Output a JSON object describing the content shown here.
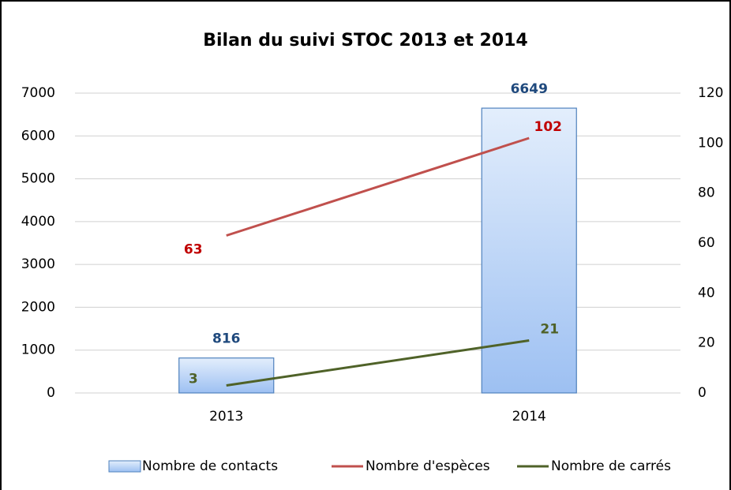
{
  "chart_data": {
    "type": "bar",
    "title": "Bilan du suivi STOC 2013 et 2014",
    "categories": [
      "2013",
      "2014"
    ],
    "series": [
      {
        "name": "Nombre de contacts",
        "type": "bar",
        "color": "#4f81bd",
        "values": [
          816,
          6649
        ]
      },
      {
        "name": "Nombre d'espèces",
        "type": "line",
        "axis": "y2",
        "color": "#c0504d",
        "values": [
          63,
          102
        ]
      },
      {
        "name": "Nombre de carrés",
        "type": "line",
        "axis": "y2",
        "color": "#4f6228",
        "values": [
          3,
          21
        ]
      }
    ],
    "ylim": [
      0,
      7000
    ],
    "yticks": [
      0,
      1000,
      2000,
      3000,
      4000,
      5000,
      6000,
      7000
    ],
    "y2lim": [
      0,
      120
    ],
    "y2ticks": [
      0,
      20,
      40,
      60,
      80,
      100,
      120
    ],
    "grid": true,
    "legend": "bottom"
  }
}
